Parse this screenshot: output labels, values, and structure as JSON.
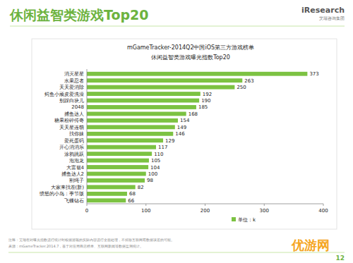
{
  "page": {
    "heading": "休闲益智类游戏Top20",
    "logo": "iResearch",
    "logo_sub": "艾瑞咨询集团",
    "note": "注释：艾瑞在对曝光指数进行统计时根据游戏的实际内容进行全面处理，不排除互联网有数据误差的可能。",
    "source": "来源：mGameTracker.2014.7，基于对应用商店榜单、互联网新闻等数据监测统计。",
    "page_number": "12",
    "watermark": "优游网"
  },
  "chart_data": {
    "type": "bar",
    "orientation": "horizontal",
    "title": "mGameTracker-2014Q2中国iOS第三方游戏榜单",
    "subtitle": "休闲益智类游戏曝光指数Top20",
    "annotation": "单位：k",
    "categories": [
      "消灭星星",
      "水果忍者",
      "天天爱消除",
      "鳄鱼小顽皮爱洗澡",
      "别踩白块儿",
      "2048",
      "捕鱼达人",
      "糖果粉碎传奇",
      "天天星连萌",
      "找你妹",
      "爱死蛋码",
      "开心消消乐",
      "涂鸦跳跃",
      "泡泡龙",
      "大富翁4",
      "捕鱼达人2",
      "割绳子",
      "大家来找茬(新)",
      "愤怒的小鸟：季节版",
      "飞蝶钻石"
    ],
    "values": [
      373,
      263,
      250,
      192,
      190,
      185,
      168,
      154,
      149,
      146,
      129,
      117,
      110,
      105,
      104,
      100,
      98,
      82,
      68,
      66
    ],
    "color": "#7cc242",
    "xlim": [
      0,
      400
    ],
    "xticks": [
      0,
      100,
      200,
      300,
      400
    ],
    "grid": false,
    "data_labels": true,
    "legend": "bottom-right"
  }
}
